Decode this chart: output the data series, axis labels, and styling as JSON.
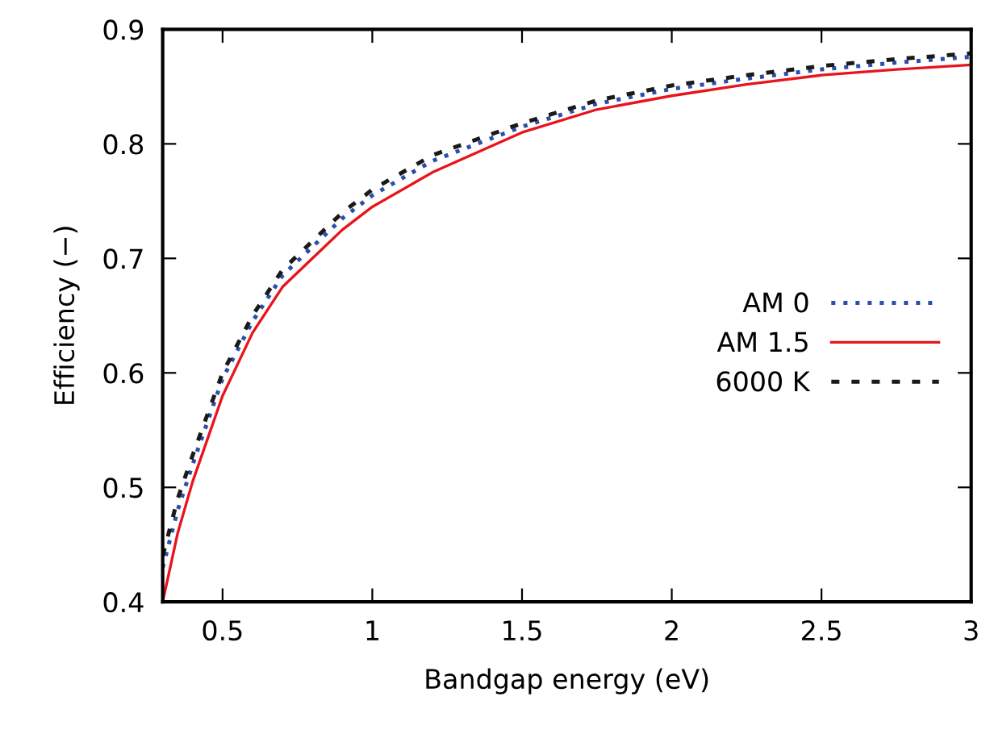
{
  "chart_data": {
    "type": "line",
    "xlabel": "Bandgap energy (eV)",
    "ylabel": "Efficiency (−)",
    "xlim": [
      0.3,
      3
    ],
    "ylim": [
      0.4,
      0.9
    ],
    "xticks": [
      0.5,
      1,
      1.5,
      2,
      2.5,
      3
    ],
    "yticks": [
      0.4,
      0.5,
      0.6,
      0.7,
      0.8,
      0.9
    ],
    "x": [
      0.3,
      0.35,
      0.4,
      0.5,
      0.6,
      0.7,
      0.8,
      0.9,
      1.0,
      1.2,
      1.5,
      1.75,
      2.0,
      2.25,
      2.5,
      2.75,
      3.0
    ],
    "grid": false,
    "legend": "right",
    "marker": "none",
    "series": [
      {
        "name": "AM 0",
        "color": "#2b4ea8",
        "line_style": "dotted",
        "values": [
          0.43,
          0.48,
          0.52,
          0.595,
          0.645,
          0.685,
          0.71,
          0.735,
          0.755,
          0.785,
          0.815,
          0.835,
          0.848,
          0.857,
          0.865,
          0.871,
          0.876
        ]
      },
      {
        "name": "AM 1.5",
        "color": "#e8141c",
        "line_style": "solid",
        "values": [
          0.4,
          0.46,
          0.505,
          0.58,
          0.635,
          0.675,
          0.7,
          0.725,
          0.745,
          0.775,
          0.81,
          0.83,
          0.842,
          0.852,
          0.86,
          0.865,
          0.869
        ]
      },
      {
        "name": "6000 K",
        "color": "#1a1a1a",
        "line_style": "dashed",
        "values": [
          0.44,
          0.49,
          0.528,
          0.6,
          0.65,
          0.69,
          0.715,
          0.74,
          0.76,
          0.79,
          0.818,
          0.838,
          0.851,
          0.86,
          0.868,
          0.874,
          0.879
        ]
      }
    ]
  }
}
